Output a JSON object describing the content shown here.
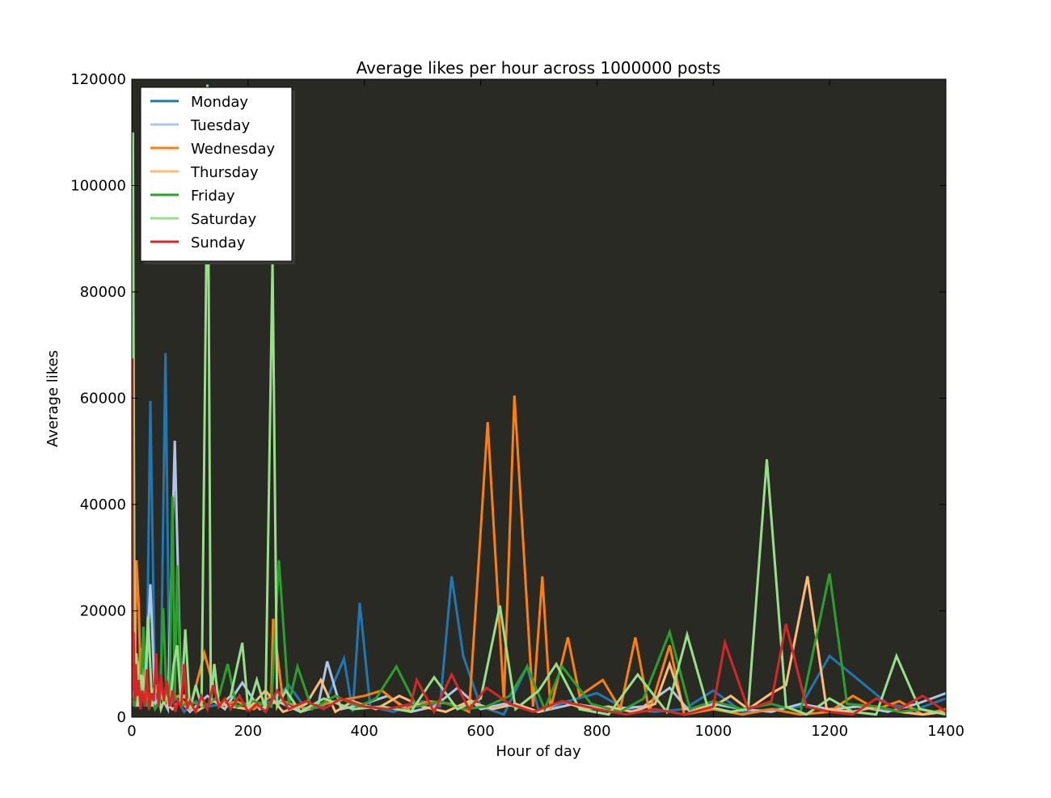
{
  "chart_data": {
    "type": "line",
    "title": "Average likes per hour across 1000000 posts",
    "xlabel": "Hour of day",
    "ylabel": "Average likes",
    "xlim": [
      0,
      1400
    ],
    "ylim": [
      0,
      120000
    ],
    "x_ticks": [
      "0",
      "200",
      "400",
      "600",
      "800",
      "1000",
      "1200",
      "1400"
    ],
    "y_ticks": [
      "0",
      "20000",
      "40000",
      "60000",
      "80000",
      "100000",
      "120000"
    ],
    "plot_background": "#2a2a24",
    "legend_placement": "upper-left",
    "grid": false,
    "series": [
      {
        "name": "Monday",
        "color": "#1f77b4",
        "x": [
          0,
          5,
          10,
          15,
          20,
          25,
          32,
          40,
          50,
          58,
          65,
          75,
          90,
          110,
          130,
          160,
          200,
          240,
          270,
          300,
          330,
          365,
          380,
          392,
          410,
          450,
          500,
          530,
          550,
          570,
          600,
          640,
          680,
          700,
          750,
          800,
          850,
          900,
          950,
          1000,
          1050,
          1100,
          1150,
          1200,
          1250,
          1300,
          1350,
          1400
        ],
        "y": [
          8000,
          3000,
          5000,
          1500,
          14000,
          2000,
          59500,
          3000,
          6000,
          68500,
          2000,
          4000,
          1000,
          3000,
          2000,
          2500,
          1500,
          3000,
          6000,
          1500,
          2000,
          11000,
          1000,
          21500,
          2000,
          1000,
          3000,
          2000,
          26500,
          11500,
          2000,
          500,
          9500,
          1000,
          3000,
          4500,
          1500,
          1000,
          1500,
          5000,
          1000,
          1500,
          2000,
          11500,
          7000,
          2500,
          1500,
          3500
        ]
      },
      {
        "name": "Tuesday",
        "color": "#aec7e8",
        "x": [
          0,
          8,
          15,
          22,
          32,
          40,
          50,
          62,
          74,
          85,
          100,
          130,
          160,
          190,
          220,
          250,
          290,
          320,
          336,
          360,
          400,
          440,
          480,
          520,
          560,
          600,
          640,
          700,
          760,
          820,
          880,
          925,
          960,
          1000,
          1050,
          1100,
          1150,
          1200,
          1250,
          1300,
          1350,
          1400
        ],
        "y": [
          5000,
          2000,
          13000,
          3000,
          25000,
          2500,
          4000,
          1500,
          52000,
          3000,
          1000,
          4000,
          1500,
          6500,
          1500,
          3000,
          1000,
          2000,
          10500,
          1500,
          2500,
          4000,
          1000,
          2000,
          5500,
          1500,
          2500,
          1000,
          2500,
          1500,
          2000,
          5500,
          1000,
          2500,
          1500,
          1000,
          2500,
          1500,
          2000,
          1000,
          2500,
          4500
        ]
      },
      {
        "name": "Wednesday",
        "color": "#ff7f0e",
        "x": [
          0,
          2,
          5,
          8,
          12,
          16,
          20,
          30,
          45,
          60,
          80,
          100,
          125,
          150,
          180,
          210,
          240,
          243,
          260,
          300,
          350,
          400,
          430,
          470,
          510,
          550,
          580,
          612,
          640,
          658,
          690,
          706,
          720,
          750,
          770,
          810,
          840,
          866,
          890,
          925,
          950,
          1000,
          1050,
          1100,
          1150,
          1200,
          1240,
          1280,
          1320,
          1360,
          1400
        ],
        "y": [
          3000,
          88000,
          5000,
          29500,
          21000,
          3000,
          8000,
          2000,
          6000,
          3000,
          4000,
          1500,
          12000,
          2000,
          3000,
          1500,
          4000,
          18500,
          3000,
          1500,
          3000,
          4000,
          5000,
          1500,
          3000,
          2500,
          1000,
          55500,
          3000,
          60500,
          2000,
          26500,
          1500,
          15000,
          4000,
          7000,
          1500,
          15000,
          1000,
          13500,
          500,
          1500,
          500,
          1500,
          500,
          1000,
          4000,
          1500,
          3000,
          500,
          1500
        ]
      },
      {
        "name": "Thursday",
        "color": "#ffbb78",
        "x": [
          0,
          4,
          10,
          18,
          28,
          40,
          55,
          70,
          90,
          110,
          140,
          170,
          200,
          230,
          260,
          300,
          325,
          350,
          380,
          420,
          460,
          500,
          540,
          580,
          620,
          660,
          700,
          740,
          780,
          820,
          860,
          900,
          925,
          950,
          1000,
          1030,
          1060,
          1100,
          1125,
          1162,
          1195,
          1240,
          1280,
          1320,
          1360,
          1400
        ],
        "y": [
          5000,
          15000,
          4000,
          8000,
          2000,
          6000,
          3000,
          1500,
          4000,
          1000,
          3000,
          2000,
          1500,
          5000,
          1000,
          2500,
          7000,
          1000,
          3000,
          1500,
          4000,
          2000,
          1000,
          3000,
          1500,
          2500,
          1000,
          3000,
          1500,
          2000,
          1000,
          2500,
          10000,
          1500,
          2000,
          4000,
          1500,
          4500,
          6000,
          26500,
          1500,
          1000,
          2000,
          1000,
          500,
          1000
        ]
      },
      {
        "name": "Friday",
        "color": "#2ca02c",
        "x": [
          0,
          5,
          10,
          15,
          20,
          25,
          32,
          40,
          48,
          54,
          60,
          65,
          70,
          74,
          78,
          85,
          100,
          125,
          150,
          165,
          180,
          210,
          240,
          253,
          270,
          285,
          310,
          350,
          390,
          420,
          455,
          490,
          530,
          570,
          610,
          650,
          680,
          710,
          740,
          790,
          840,
          880,
          925,
          960,
          1000,
          1050,
          1100,
          1150,
          1200,
          1230,
          1280,
          1320,
          1360,
          1400
        ],
        "y": [
          4000,
          2000,
          8000,
          3000,
          17000,
          2000,
          4000,
          1500,
          3000,
          20500,
          3000,
          4000,
          41500,
          3000,
          28500,
          2000,
          3000,
          2000,
          4000,
          10000,
          2000,
          3000,
          2000,
          29500,
          2500,
          9500,
          1500,
          4000,
          2000,
          3500,
          9500,
          2000,
          3000,
          1500,
          2000,
          4000,
          9500,
          1500,
          9500,
          2500,
          1000,
          3500,
          16000,
          1500,
          3000,
          1500,
          2500,
          1000,
          27000,
          2500,
          2000,
          1000,
          1500,
          500
        ]
      },
      {
        "name": "Saturday",
        "color": "#98df8a",
        "x": [
          0,
          2,
          5,
          8,
          12,
          16,
          22,
          28,
          35,
          42,
          50,
          58,
          66,
          72,
          78,
          85,
          92,
          100,
          110,
          120,
          128,
          130,
          132,
          136,
          142,
          150,
          170,
          190,
          200,
          215,
          230,
          242,
          250,
          265,
          290,
          330,
          380,
          430,
          480,
          520,
          560,
          600,
          633,
          660,
          700,
          730,
          770,
          820,
          870,
          920,
          955,
          990,
          1030,
          1060,
          1092,
          1125,
          1160,
          1200,
          1240,
          1280,
          1315,
          1355,
          1400
        ],
        "y": [
          3000,
          110000,
          4000,
          12000,
          2000,
          8000,
          3000,
          19000,
          2000,
          6000,
          1500,
          4000,
          2000,
          10000,
          13500,
          2000,
          16500,
          1500,
          6000,
          2000,
          85000,
          119000,
          87000,
          3000,
          10000,
          2000,
          4000,
          14000,
          1500,
          7000,
          1500,
          86000,
          2000,
          5000,
          1000,
          3500,
          1500,
          2000,
          1000,
          7500,
          1500,
          3500,
          21000,
          1500,
          5000,
          10000,
          1500,
          500,
          8000,
          1000,
          15500,
          2000,
          1000,
          1500,
          48500,
          2000,
          500,
          3500,
          1000,
          500,
          11500,
          1500,
          500
        ]
      },
      {
        "name": "Sunday",
        "color": "#d62728",
        "x": [
          0,
          1,
          2,
          3,
          5,
          7,
          9,
          12,
          15,
          18,
          22,
          26,
          30,
          34,
          38,
          42,
          46,
          50,
          55,
          60,
          65,
          70,
          75,
          80,
          85,
          90,
          95,
          100,
          110,
          120,
          130,
          140,
          150,
          160,
          170,
          185,
          200,
          215,
          230,
          250,
          270,
          300,
          330,
          360,
          400,
          440,
          480,
          490,
          520,
          550,
          580,
          610,
          650,
          690,
          740,
          800,
          850,
          900,
          950,
          1000,
          1020,
          1060,
          1100,
          1125,
          1160,
          1200,
          1240,
          1280,
          1320,
          1360,
          1400
        ],
        "y": [
          2000,
          67500,
          5000,
          16000,
          3000,
          10000,
          4000,
          7000,
          1500,
          5000,
          2000,
          9000,
          1500,
          4500,
          3000,
          12000,
          2000,
          8000,
          3000,
          7000,
          2000,
          5000,
          1000,
          3000,
          2000,
          10000,
          1500,
          3000,
          1000,
          4000,
          1500,
          6000,
          2000,
          3500,
          1500,
          4000,
          1000,
          2500,
          1000,
          5000,
          1500,
          3000,
          1500,
          3500,
          2000,
          1500,
          2500,
          7000,
          1000,
          8000,
          1500,
          5500,
          2500,
          1000,
          3000,
          1500,
          500,
          1500,
          500,
          2000,
          14000,
          1500,
          3000,
          17500,
          2000,
          1000,
          500,
          3500,
          1500,
          4000,
          1000
        ]
      }
    ]
  }
}
